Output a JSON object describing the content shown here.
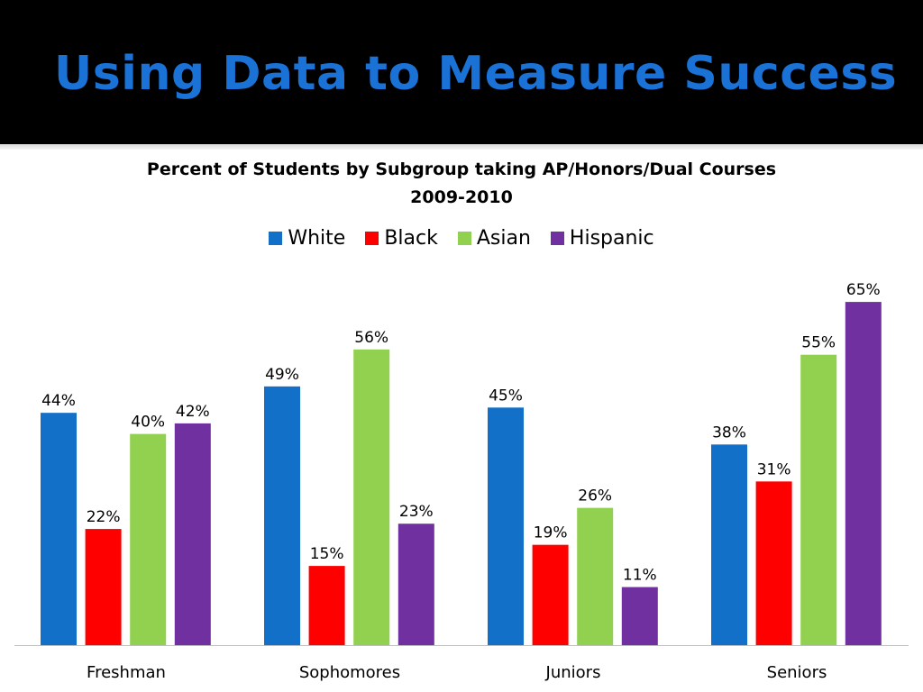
{
  "slide": {
    "title": "Using Data to Measure Success"
  },
  "colors": {
    "header_background": "#000000",
    "title": "#1a72d6"
  },
  "chart_data": {
    "type": "bar",
    "title": "Percent of Students by Subgroup taking AP/Honors/Dual Courses",
    "subtitle": "2009-2010",
    "categories": [
      "Freshman",
      "Sophomores",
      "Juniors",
      "Seniors"
    ],
    "series": [
      {
        "name": "White",
        "color": "#1270c8",
        "values": [
          44,
          49,
          45,
          38
        ],
        "labels": [
          "44%",
          "49%",
          "45%",
          "38%"
        ]
      },
      {
        "name": "Black",
        "color": "#ff0000",
        "values": [
          22,
          15,
          19,
          31
        ],
        "labels": [
          "22%",
          "15%",
          "19%",
          "31%"
        ]
      },
      {
        "name": "Asian",
        "color": "#92d050",
        "values": [
          40,
          56,
          26,
          55
        ],
        "labels": [
          "40%",
          "56%",
          "26%",
          "55%"
        ]
      },
      {
        "name": "Hispanic",
        "color": "#7030a0",
        "values": [
          42,
          23,
          11,
          65
        ],
        "labels": [
          "42%",
          "23%",
          "11%",
          "65%"
        ]
      }
    ],
    "ylim": [
      0,
      70
    ],
    "grid": false,
    "legend": "top-center",
    "xlabel": "",
    "ylabel": ""
  }
}
